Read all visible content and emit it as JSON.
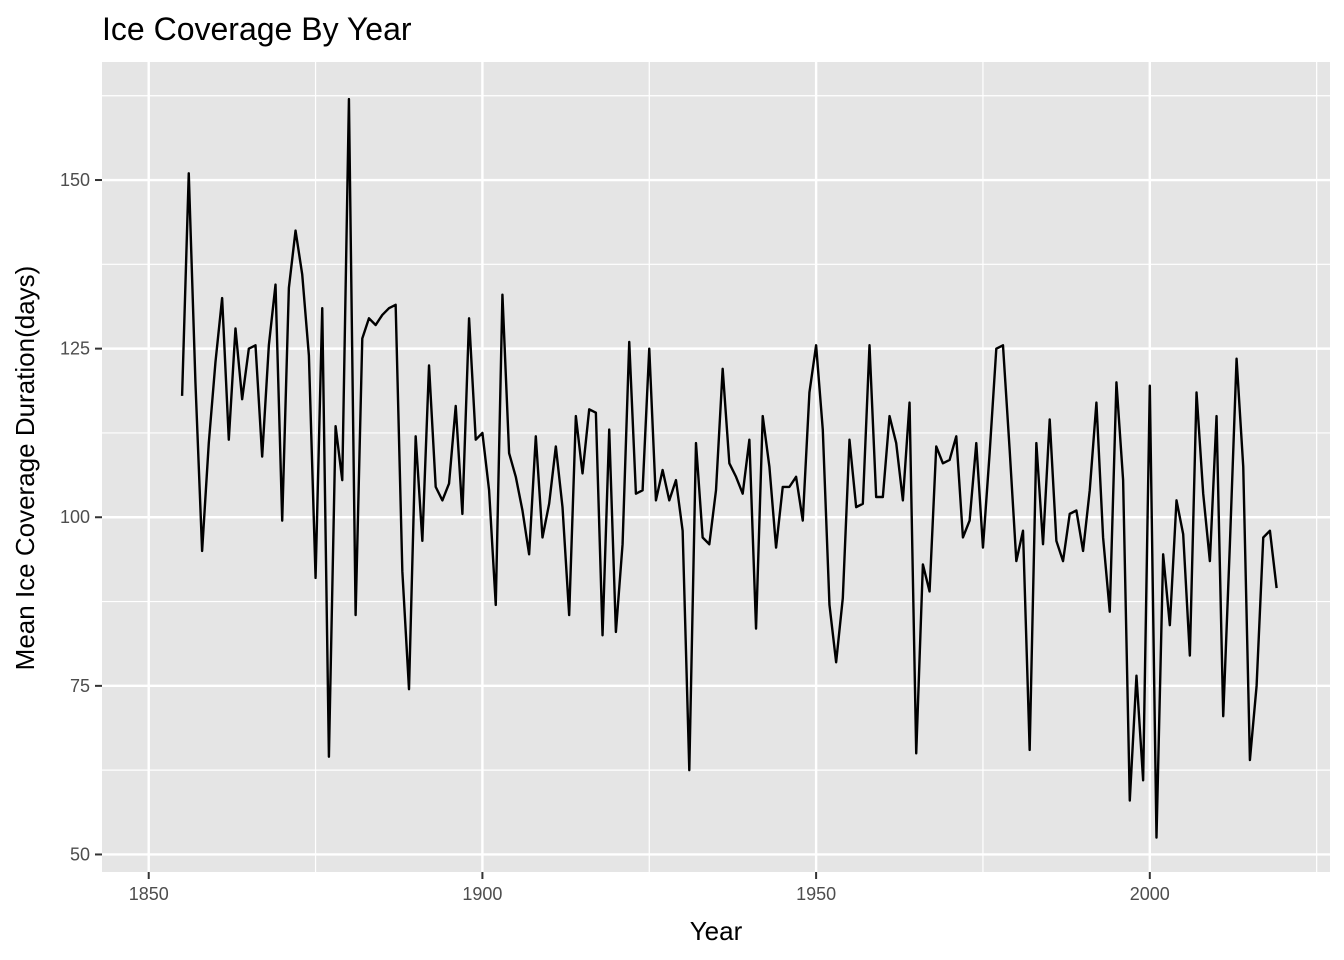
{
  "chart_data": {
    "type": "line",
    "title": "Ice Coverage By Year",
    "xlabel": "Year",
    "ylabel": "Mean Ice Coverage Duration(days)",
    "xlim": [
      1843,
      2027
    ],
    "ylim": [
      47.4,
      167.5
    ],
    "x_ticks": [
      1850,
      1900,
      1950,
      2000
    ],
    "y_ticks": [
      50,
      75,
      100,
      125,
      150
    ],
    "grid": true,
    "background": "#e5e5e5",
    "line_color": "#000000",
    "x": [
      1855,
      1856,
      1857,
      1858,
      1859,
      1860,
      1861,
      1862,
      1863,
      1864,
      1865,
      1866,
      1867,
      1868,
      1869,
      1870,
      1871,
      1872,
      1873,
      1874,
      1875,
      1876,
      1877,
      1878,
      1879,
      1880,
      1881,
      1882,
      1883,
      1884,
      1885,
      1886,
      1887,
      1888,
      1889,
      1890,
      1891,
      1892,
      1893,
      1894,
      1895,
      1896,
      1897,
      1898,
      1899,
      1900,
      1901,
      1902,
      1903,
      1904,
      1905,
      1906,
      1907,
      1908,
      1909,
      1910,
      1911,
      1912,
      1913,
      1914,
      1915,
      1916,
      1917,
      1918,
      1919,
      1920,
      1921,
      1922,
      1923,
      1924,
      1925,
      1926,
      1927,
      1928,
      1929,
      1930,
      1931,
      1932,
      1933,
      1934,
      1935,
      1936,
      1937,
      1938,
      1939,
      1940,
      1941,
      1942,
      1943,
      1944,
      1945,
      1946,
      1947,
      1948,
      1949,
      1950,
      1951,
      1952,
      1953,
      1954,
      1955,
      1956,
      1957,
      1958,
      1959,
      1960,
      1961,
      1962,
      1963,
      1964,
      1965,
      1966,
      1967,
      1968,
      1969,
      1970,
      1971,
      1972,
      1973,
      1974,
      1975,
      1976,
      1977,
      1978,
      1979,
      1980,
      1981,
      1982,
      1983,
      1984,
      1985,
      1986,
      1987,
      1988,
      1989,
      1990,
      1991,
      1992,
      1993,
      1994,
      1995,
      1996,
      1997,
      1998,
      1999,
      2000,
      2001,
      2002,
      2003,
      2004,
      2005,
      2006,
      2007,
      2008,
      2009,
      2010,
      2011,
      2012,
      2013,
      2014,
      2015,
      2016,
      2017,
      2018,
      2019
    ],
    "y": [
      118,
      151,
      120,
      95,
      111,
      123,
      132.5,
      111.5,
      128,
      117.5,
      125,
      125.5,
      109,
      125.5,
      134.5,
      99.5,
      134,
      142.5,
      136,
      124,
      91,
      131,
      64.5,
      113.5,
      105.5,
      162,
      85.5,
      126.5,
      129.5,
      128.5,
      130,
      131,
      131.5,
      92,
      74.5,
      112,
      96.5,
      122.5,
      104.5,
      102.5,
      105,
      116.5,
      100.5,
      129.5,
      111.5,
      112.5,
      104,
      87,
      133,
      109.5,
      106,
      101,
      94.5,
      112,
      97,
      102,
      110.5,
      101.5,
      85.5,
      115,
      106.5,
      116,
      115.5,
      82.5,
      113,
      83,
      96,
      126,
      103.5,
      104,
      125,
      102.5,
      107,
      102.5,
      105.5,
      98,
      62.5,
      111,
      97,
      96,
      104,
      122,
      108,
      106,
      103.5,
      111.5,
      83.5,
      115,
      107.5,
      95.5,
      104.5,
      104.5,
      106,
      99.5,
      118.5,
      125.5,
      113,
      87,
      78.5,
      88,
      111.5,
      101.5,
      102,
      125.5,
      103,
      103,
      115,
      111,
      102.5,
      117,
      65,
      93,
      89,
      110.5,
      108,
      108.5,
      112,
      97,
      99.5,
      111,
      95.5,
      109.5,
      125,
      125.5,
      110,
      93.5,
      98,
      65.5,
      111,
      96,
      114.5,
      96.5,
      93.5,
      100.5,
      101,
      95,
      104,
      117,
      97,
      86,
      120,
      105.5,
      58,
      76.5,
      61,
      119.5,
      52.5,
      94.5,
      84,
      102.5,
      97.5,
      79.5,
      118.5,
      103.5,
      93.5,
      115,
      70.5,
      96,
      123.5,
      107.5,
      64,
      75,
      97,
      98,
      89.5
    ]
  }
}
